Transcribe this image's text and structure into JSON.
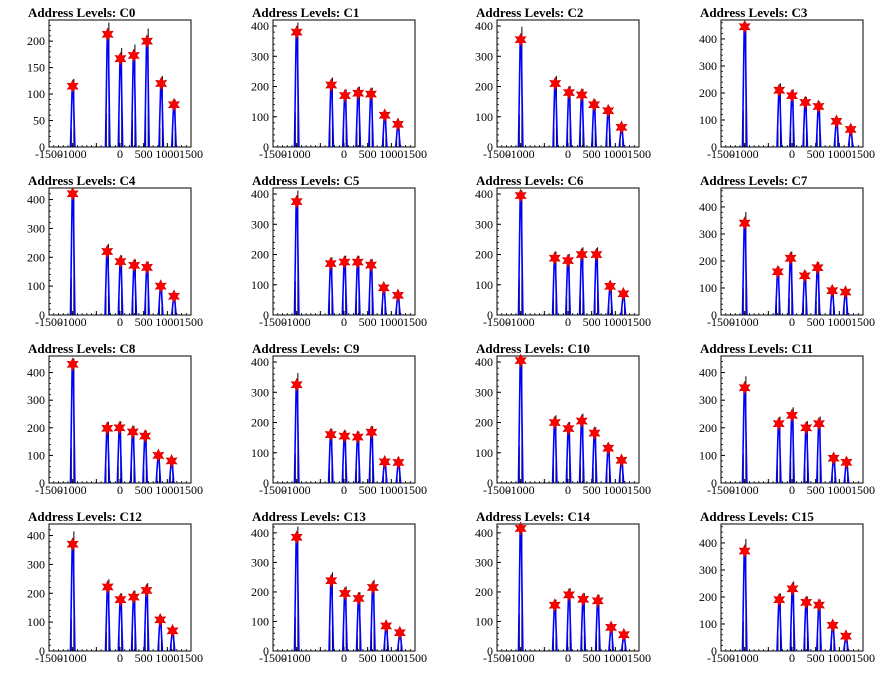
{
  "colors": {
    "outline": "#0000ff",
    "fill_hist": "#000000",
    "marker": "#ff0000",
    "marker_edge": "#cc0000"
  },
  "chart_data": [
    {
      "type": "line",
      "title": "Address Levels: C0",
      "xlim": [
        -1500,
        1500
      ],
      "ylim": [
        0,
        240
      ],
      "yticks": [
        0,
        50,
        100,
        150,
        200
      ],
      "xticks": [
        -1500,
        -1000,
        -500,
        0,
        500,
        1000,
        1500
      ],
      "xtick_labels": [
        "-1500",
        "-1000",
        "",
        "0",
        "500",
        "1000",
        "1500"
      ],
      "peaks": [
        {
          "x": -1000,
          "y": 115
        },
        {
          "x": -260,
          "y": 213
        },
        {
          "x": 10,
          "y": 167
        },
        {
          "x": 290,
          "y": 173
        },
        {
          "x": 570,
          "y": 200
        },
        {
          "x": 870,
          "y": 120
        },
        {
          "x": 1140,
          "y": 80
        }
      ]
    },
    {
      "type": "line",
      "title": "Address Levels: C1",
      "xlim": [
        -1500,
        1500
      ],
      "ylim": [
        0,
        420
      ],
      "yticks": [
        0,
        100,
        200,
        300,
        400
      ],
      "xticks": [
        -1500,
        -1000,
        -500,
        0,
        500,
        1000,
        1500
      ],
      "xtick_labels": [
        "-1500",
        "-1000",
        "",
        "0",
        "500",
        "1000",
        "1500"
      ],
      "peaks": [
        {
          "x": -1000,
          "y": 380
        },
        {
          "x": -270,
          "y": 205
        },
        {
          "x": 20,
          "y": 170
        },
        {
          "x": 300,
          "y": 178
        },
        {
          "x": 570,
          "y": 175
        },
        {
          "x": 860,
          "y": 105
        },
        {
          "x": 1140,
          "y": 75
        }
      ]
    },
    {
      "type": "line",
      "title": "Address Levels: C2",
      "xlim": [
        -1500,
        1500
      ],
      "ylim": [
        0,
        420
      ],
      "yticks": [
        0,
        100,
        200,
        300,
        400
      ],
      "xticks": [
        -1500,
        -1000,
        -500,
        0,
        500,
        1000,
        1500
      ],
      "xtick_labels": [
        "-1500",
        "-1000",
        "",
        "0",
        "500",
        "1000",
        "1500"
      ],
      "peaks": [
        {
          "x": -1000,
          "y": 355
        },
        {
          "x": -270,
          "y": 210
        },
        {
          "x": 20,
          "y": 180
        },
        {
          "x": 290,
          "y": 172
        },
        {
          "x": 550,
          "y": 140
        },
        {
          "x": 850,
          "y": 120
        },
        {
          "x": 1130,
          "y": 65
        }
      ]
    },
    {
      "type": "line",
      "title": "Address Levels: C3",
      "xlim": [
        -1500,
        1500
      ],
      "ylim": [
        0,
        470
      ],
      "yticks": [
        0,
        100,
        200,
        300,
        400
      ],
      "xticks": [
        -1500,
        -1000,
        -500,
        0,
        500,
        1000,
        1500
      ],
      "xtick_labels": [
        "-1500",
        "-1000",
        "",
        "0",
        "500",
        "1000",
        "1500"
      ],
      "peaks": [
        {
          "x": -1000,
          "y": 445
        },
        {
          "x": -270,
          "y": 210
        },
        {
          "x": 0,
          "y": 190
        },
        {
          "x": 280,
          "y": 165
        },
        {
          "x": 560,
          "y": 150
        },
        {
          "x": 940,
          "y": 95
        },
        {
          "x": 1240,
          "y": 65
        }
      ]
    },
    {
      "type": "line",
      "title": "Address Levels: C4",
      "xlim": [
        -1500,
        1500
      ],
      "ylim": [
        0,
        440
      ],
      "yticks": [
        0,
        100,
        200,
        300,
        400
      ],
      "xticks": [
        -1500,
        -1000,
        -500,
        0,
        500,
        1000,
        1500
      ],
      "xtick_labels": [
        "-1500",
        "-1000",
        "",
        "0",
        "500",
        "1000",
        "1500"
      ],
      "peaks": [
        {
          "x": -1000,
          "y": 420
        },
        {
          "x": -270,
          "y": 220
        },
        {
          "x": 10,
          "y": 185
        },
        {
          "x": 300,
          "y": 172
        },
        {
          "x": 570,
          "y": 165
        },
        {
          "x": 860,
          "y": 100
        },
        {
          "x": 1140,
          "y": 65
        }
      ]
    },
    {
      "type": "line",
      "title": "Address Levels: C5",
      "xlim": [
        -1500,
        1500
      ],
      "ylim": [
        0,
        420
      ],
      "yticks": [
        0,
        100,
        200,
        300,
        400
      ],
      "xticks": [
        -1500,
        -1000,
        -500,
        0,
        500,
        1000,
        1500
      ],
      "xtick_labels": [
        "-1500",
        "-1000",
        "",
        "0",
        "500",
        "1000",
        "1500"
      ],
      "peaks": [
        {
          "x": -1000,
          "y": 375
        },
        {
          "x": -280,
          "y": 170
        },
        {
          "x": 10,
          "y": 175
        },
        {
          "x": 290,
          "y": 175
        },
        {
          "x": 570,
          "y": 165
        },
        {
          "x": 840,
          "y": 90
        },
        {
          "x": 1140,
          "y": 65
        }
      ]
    },
    {
      "type": "line",
      "title": "Address Levels: C6",
      "xlim": [
        -1500,
        1500
      ],
      "ylim": [
        0,
        420
      ],
      "yticks": [
        0,
        100,
        200,
        300,
        400
      ],
      "xticks": [
        -1500,
        -1000,
        -500,
        0,
        500,
        1000,
        1500
      ],
      "xtick_labels": [
        "-1500",
        "-1000",
        "",
        "0",
        "500",
        "1000",
        "1500"
      ],
      "peaks": [
        {
          "x": -1000,
          "y": 395
        },
        {
          "x": -280,
          "y": 188
        },
        {
          "x": 0,
          "y": 180
        },
        {
          "x": 290,
          "y": 200
        },
        {
          "x": 600,
          "y": 200
        },
        {
          "x": 890,
          "y": 95
        },
        {
          "x": 1170,
          "y": 70
        }
      ]
    },
    {
      "type": "line",
      "title": "Address Levels: C7",
      "xlim": [
        -1500,
        1500
      ],
      "ylim": [
        0,
        470
      ],
      "yticks": [
        0,
        100,
        200,
        300,
        400
      ],
      "xticks": [
        -1500,
        -1000,
        -500,
        0,
        500,
        1000,
        1500
      ],
      "xtick_labels": [
        "-1500",
        "-1000",
        "",
        "0",
        "500",
        "1000",
        "1500"
      ],
      "peaks": [
        {
          "x": -1000,
          "y": 340
        },
        {
          "x": -300,
          "y": 160
        },
        {
          "x": -30,
          "y": 210
        },
        {
          "x": 270,
          "y": 145
        },
        {
          "x": 540,
          "y": 175
        },
        {
          "x": 850,
          "y": 90
        },
        {
          "x": 1130,
          "y": 85
        }
      ]
    },
    {
      "type": "line",
      "title": "Address Levels: C8",
      "xlim": [
        -1500,
        1500
      ],
      "ylim": [
        0,
        460
      ],
      "yticks": [
        0,
        100,
        200,
        300,
        400
      ],
      "xticks": [
        -1500,
        -1000,
        -500,
        0,
        500,
        1000,
        1500
      ],
      "xtick_labels": [
        "-1500",
        "-1000",
        "",
        "0",
        "500",
        "1000",
        "1500"
      ],
      "peaks": [
        {
          "x": -1000,
          "y": 430
        },
        {
          "x": -270,
          "y": 198
        },
        {
          "x": -10,
          "y": 200
        },
        {
          "x": 270,
          "y": 185
        },
        {
          "x": 530,
          "y": 170
        },
        {
          "x": 810,
          "y": 100
        },
        {
          "x": 1090,
          "y": 80
        }
      ]
    },
    {
      "type": "line",
      "title": "Address Levels: C9",
      "xlim": [
        -1500,
        1500
      ],
      "ylim": [
        0,
        420
      ],
      "yticks": [
        0,
        100,
        200,
        300,
        400
      ],
      "xticks": [
        -1500,
        -1000,
        -500,
        0,
        500,
        1000,
        1500
      ],
      "xtick_labels": [
        "-1500",
        "-1000",
        "",
        "0",
        "500",
        "1000",
        "1500"
      ],
      "peaks": [
        {
          "x": -1000,
          "y": 325
        },
        {
          "x": -280,
          "y": 160
        },
        {
          "x": 10,
          "y": 155
        },
        {
          "x": 290,
          "y": 152
        },
        {
          "x": 580,
          "y": 168
        },
        {
          "x": 860,
          "y": 70
        },
        {
          "x": 1150,
          "y": 68
        }
      ]
    },
    {
      "type": "line",
      "title": "Address Levels: C10",
      "xlim": [
        -1500,
        1500
      ],
      "ylim": [
        0,
        420
      ],
      "yticks": [
        0,
        100,
        200,
        300,
        400
      ],
      "xticks": [
        -1500,
        -1000,
        -500,
        0,
        500,
        1000,
        1500
      ],
      "xtick_labels": [
        "-1500",
        "-1000",
        "",
        "0",
        "500",
        "1000",
        "1500"
      ],
      "peaks": [
        {
          "x": -1000,
          "y": 405
        },
        {
          "x": -280,
          "y": 200
        },
        {
          "x": 10,
          "y": 180
        },
        {
          "x": 290,
          "y": 205
        },
        {
          "x": 560,
          "y": 165
        },
        {
          "x": 850,
          "y": 115
        },
        {
          "x": 1130,
          "y": 75
        }
      ]
    },
    {
      "type": "line",
      "title": "Address Levels: C11",
      "xlim": [
        -1500,
        1500
      ],
      "ylim": [
        0,
        460
      ],
      "yticks": [
        0,
        100,
        200,
        300,
        400
      ],
      "xticks": [
        -1500,
        -1000,
        -500,
        0,
        500,
        1000,
        1500
      ],
      "xtick_labels": [
        "-1500",
        "-1000",
        "",
        "0",
        "500",
        "1000",
        "1500"
      ],
      "peaks": [
        {
          "x": -1000,
          "y": 345
        },
        {
          "x": -280,
          "y": 215
        },
        {
          "x": 0,
          "y": 245
        },
        {
          "x": 300,
          "y": 200
        },
        {
          "x": 570,
          "y": 215
        },
        {
          "x": 880,
          "y": 90
        },
        {
          "x": 1150,
          "y": 75
        }
      ]
    },
    {
      "type": "line",
      "title": "Address Levels: C12",
      "xlim": [
        -1500,
        1500
      ],
      "ylim": [
        0,
        440
      ],
      "yticks": [
        0,
        100,
        200,
        300,
        400
      ],
      "xticks": [
        -1500,
        -1000,
        -500,
        0,
        500,
        1000,
        1500
      ],
      "xtick_labels": [
        "-1500",
        "-1000",
        "",
        "0",
        "500",
        "1000",
        "1500"
      ],
      "peaks": [
        {
          "x": -1000,
          "y": 370
        },
        {
          "x": -260,
          "y": 222
        },
        {
          "x": 10,
          "y": 178
        },
        {
          "x": 290,
          "y": 187
        },
        {
          "x": 560,
          "y": 210
        },
        {
          "x": 850,
          "y": 108
        },
        {
          "x": 1110,
          "y": 70
        }
      ]
    },
    {
      "type": "line",
      "title": "Address Levels: C13",
      "xlim": [
        -1500,
        1500
      ],
      "ylim": [
        0,
        430
      ],
      "yticks": [
        0,
        100,
        200,
        300,
        400
      ],
      "xticks": [
        -1500,
        -1000,
        -500,
        0,
        500,
        1000,
        1500
      ],
      "xtick_labels": [
        "-1500",
        "-1000",
        "",
        "0",
        "500",
        "1000",
        "1500"
      ],
      "peaks": [
        {
          "x": -1000,
          "y": 385
        },
        {
          "x": -270,
          "y": 238
        },
        {
          "x": 20,
          "y": 195
        },
        {
          "x": 310,
          "y": 178
        },
        {
          "x": 610,
          "y": 215
        },
        {
          "x": 890,
          "y": 85
        },
        {
          "x": 1180,
          "y": 62
        }
      ]
    },
    {
      "type": "line",
      "title": "Address Levels: C14",
      "xlim": [
        -1500,
        1500
      ],
      "ylim": [
        0,
        430
      ],
      "yticks": [
        0,
        100,
        200,
        300,
        400
      ],
      "xticks": [
        -1500,
        -1000,
        -500,
        0,
        500,
        1000,
        1500
      ],
      "xtick_labels": [
        "-1500",
        "-1000",
        "",
        "0",
        "500",
        "1000",
        "1500"
      ],
      "peaks": [
        {
          "x": -1000,
          "y": 415
        },
        {
          "x": -280,
          "y": 155
        },
        {
          "x": 20,
          "y": 190
        },
        {
          "x": 320,
          "y": 175
        },
        {
          "x": 630,
          "y": 170
        },
        {
          "x": 910,
          "y": 80
        },
        {
          "x": 1180,
          "y": 55
        }
      ]
    },
    {
      "type": "line",
      "title": "Address Levels: C15",
      "xlim": [
        -1500,
        1500
      ],
      "ylim": [
        0,
        470
      ],
      "yticks": [
        0,
        100,
        200,
        300,
        400
      ],
      "xticks": [
        -1500,
        -1000,
        -500,
        0,
        500,
        1000,
        1500
      ],
      "xtick_labels": [
        "-1500",
        "-1000",
        "",
        "0",
        "500",
        "1000",
        "1500"
      ],
      "peaks": [
        {
          "x": -1000,
          "y": 370
        },
        {
          "x": -270,
          "y": 190
        },
        {
          "x": 10,
          "y": 230
        },
        {
          "x": 300,
          "y": 180
        },
        {
          "x": 570,
          "y": 170
        },
        {
          "x": 860,
          "y": 95
        },
        {
          "x": 1140,
          "y": 55
        }
      ]
    }
  ]
}
